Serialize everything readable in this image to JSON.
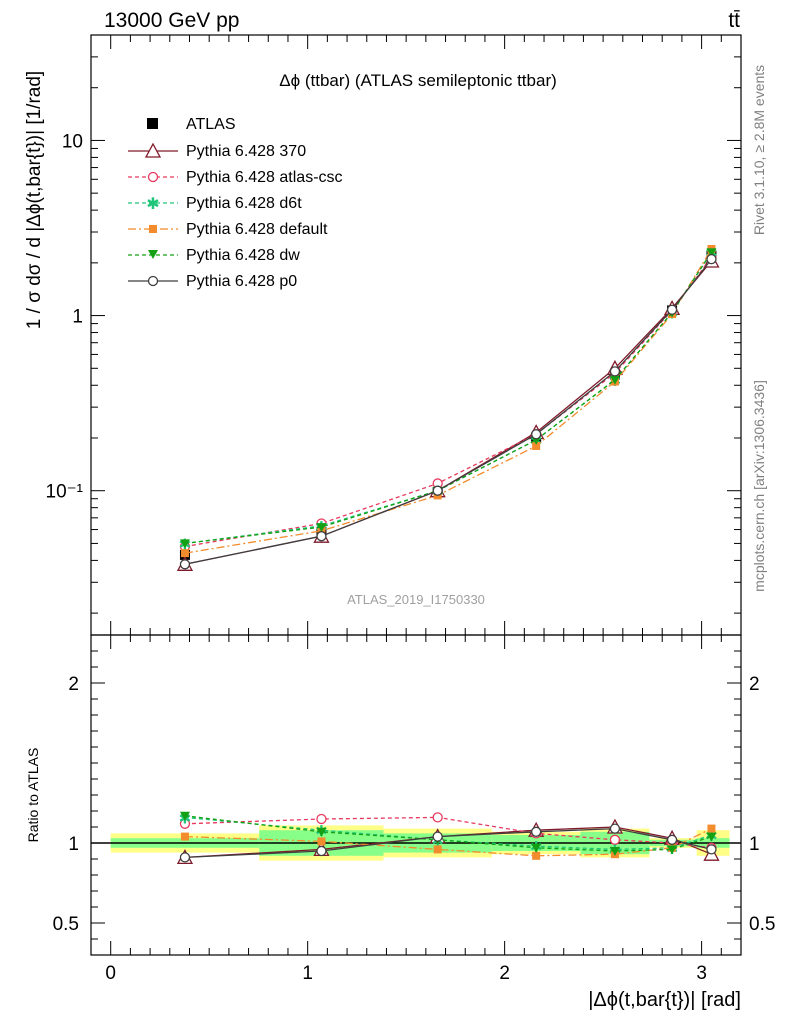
{
  "header": {
    "energy": "13000 GeV pp",
    "process": "tt̄"
  },
  "plot_title": "Δϕ (ttbar) (ATLAS semileptonic ttbar)",
  "watermark": "ATLAS_2019_I1750330",
  "side_labels": {
    "rivet": "Rivet 3.1.10, ≥ 2.8M events",
    "mcplots": "mcplots.cern.ch [arXiv:1306.3436]"
  },
  "axes": {
    "main_ylabel": "1 / σ dσ / d |Δϕ(t,bar{t})| [1/rad]",
    "ratio_ylabel": "Ratio to ATLAS",
    "xlabel": "|Δϕ(t,bar{t})| [rad]",
    "x_ticklabels": [
      "0",
      "1",
      "2",
      "3"
    ],
    "main_ticklabels": [
      "10⁻¹",
      "1",
      "10"
    ],
    "ratio_ticklabels": [
      "0.5",
      "1",
      "2"
    ]
  },
  "colors": {
    "atlas": "#000000",
    "p370": "#7f1a2a",
    "csc": "#e8385e",
    "d6t": "#1fc67a",
    "default": "#f28c2c",
    "dw": "#14a014",
    "p0": "#3f3f3f",
    "band_inner": "#88ff88",
    "band_outer": "#ffff88"
  },
  "legend": {
    "atlas": "ATLAS",
    "p370": "Pythia 6.428 370",
    "csc": "Pythia 6.428 atlas-csc",
    "d6t": "Pythia 6.428 d6t",
    "default": "Pythia 6.428 default",
    "dw": "Pythia 6.428 dw",
    "p0": "Pythia 6.428 p0"
  },
  "chart_data": {
    "type": "line",
    "title": "Δϕ (ttbar) (ATLAS semileptonic ttbar)",
    "xlabel": "|Δϕ(t,bar{t})| [rad]",
    "ylabel": "1 / σ dσ / d |Δϕ(t,bar{t})| [1/rad]",
    "xlim": [
      -0.1,
      3.2
    ],
    "ylim": [
      0.015,
      40
    ],
    "yscale": "log",
    "ratio_ylim": [
      0.3,
      2.3
    ],
    "x": [
      0.377,
      1.07,
      1.66,
      2.16,
      2.56,
      2.85,
      3.05
    ],
    "bins": [
      [
        0.0,
        0.754
      ],
      [
        0.754,
        1.385
      ],
      [
        1.385,
        1.935
      ],
      [
        1.935,
        2.385
      ],
      [
        2.385,
        2.735
      ],
      [
        2.735,
        2.975
      ],
      [
        2.975,
        3.142
      ]
    ],
    "data": {
      "values": [
        0.043,
        0.058,
        0.098,
        0.2,
        0.46,
        1.07,
        2.2
      ],
      "band_inner": [
        0.03,
        0.08,
        0.06,
        0.05,
        0.07,
        0.02,
        0.03
      ],
      "band_outer": [
        0.06,
        0.11,
        0.09,
        0.07,
        0.09,
        0.03,
        0.08
      ]
    },
    "series": [
      {
        "name": "Pythia 6.428 370",
        "key": "p370",
        "values": [
          0.038,
          0.055,
          0.1,
          0.215,
          0.5,
          1.1,
          2.05
        ],
        "ratio": [
          0.91,
          0.96,
          1.04,
          1.08,
          1.1,
          1.03,
          0.93
        ]
      },
      {
        "name": "Pythia 6.428 atlas-csc",
        "key": "csc",
        "values": [
          0.048,
          0.065,
          0.11,
          0.21,
          0.47,
          1.07,
          2.15
        ],
        "ratio": [
          1.12,
          1.15,
          1.16,
          1.06,
          1.02,
          1.0,
          0.97
        ]
      },
      {
        "name": "Pythia 6.428 d6t",
        "key": "d6t",
        "values": [
          0.05,
          0.063,
          0.1,
          0.195,
          0.43,
          1.04,
          2.3
        ],
        "ratio": [
          1.16,
          1.08,
          1.02,
          0.98,
          0.96,
          0.97,
          1.05
        ]
      },
      {
        "name": "Pythia 6.428 default",
        "key": "default",
        "values": [
          0.044,
          0.059,
          0.094,
          0.18,
          0.42,
          1.02,
          2.4
        ],
        "ratio": [
          1.04,
          1.01,
          0.96,
          0.92,
          0.93,
          0.97,
          1.09
        ]
      },
      {
        "name": "Pythia 6.428 dw",
        "key": "dw",
        "values": [
          0.05,
          0.062,
          0.1,
          0.195,
          0.43,
          1.04,
          2.3
        ],
        "ratio": [
          1.17,
          1.07,
          1.02,
          0.97,
          0.95,
          0.96,
          1.04
        ]
      },
      {
        "name": "Pythia 6.428 p0",
        "key": "p0",
        "values": [
          0.038,
          0.055,
          0.1,
          0.21,
          0.48,
          1.08,
          2.1
        ],
        "ratio": [
          0.91,
          0.95,
          1.04,
          1.07,
          1.09,
          1.02,
          0.96
        ]
      }
    ]
  }
}
